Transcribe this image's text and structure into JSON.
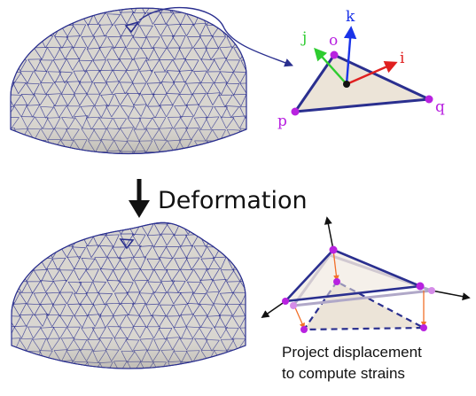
{
  "step_label": "Deformation",
  "caption": {
    "line1": "Project displacement",
    "line2": "to compute strains"
  },
  "vertex_labels": {
    "o": "o",
    "p": "p",
    "q": "q"
  },
  "axis_labels": {
    "i": "i",
    "j": "j",
    "k": "k"
  },
  "colors": {
    "mesh_fill": "#d9d6d0",
    "mesh_edge": "#2a2f8f",
    "triangle_fill": "#ece4d8",
    "triangle_edge": "#2a2f8f",
    "vertex": "#b822e0",
    "vertex_light": "#d58ce8",
    "axis_i": "#e02020",
    "axis_j": "#2ecc30",
    "axis_k": "#1a33e8",
    "displacement": "#f2702a",
    "arrow": "#111111"
  }
}
